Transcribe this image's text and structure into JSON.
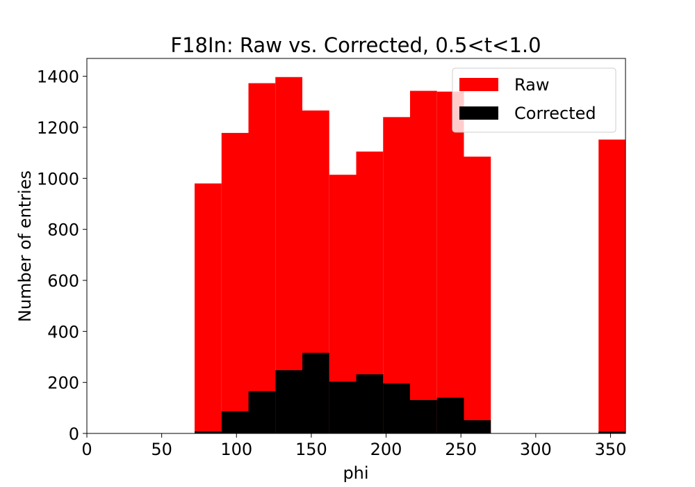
{
  "chart_data": {
    "type": "bar",
    "title": "F18In: Raw vs. Corrected, 0.5<t<1.0",
    "xlabel": "phi",
    "ylabel": "Number of entries",
    "xlim": [
      0,
      360
    ],
    "ylim": [
      0,
      1470
    ],
    "xticks": [
      0,
      50,
      100,
      150,
      200,
      250,
      300,
      350
    ],
    "yticks": [
      0,
      200,
      400,
      600,
      800,
      1000,
      1200,
      1400
    ],
    "bin_edges": [
      72,
      90,
      108,
      126,
      144,
      162,
      180,
      198,
      216,
      234,
      252,
      270,
      288,
      306,
      324,
      342,
      360
    ],
    "legend_position": "top-right",
    "series": [
      {
        "name": "Raw",
        "color": "#ff0000",
        "values": [
          980,
          1178,
          1373,
          1397,
          1266,
          1014,
          1105,
          1240,
          1343,
          1340,
          1085,
          0,
          0,
          0,
          0,
          1152
        ]
      },
      {
        "name": "Corrected",
        "color": "#000000",
        "values": [
          8,
          87,
          166,
          248,
          316,
          203,
          232,
          196,
          131,
          140,
          52,
          0,
          0,
          0,
          0,
          7
        ]
      }
    ]
  }
}
